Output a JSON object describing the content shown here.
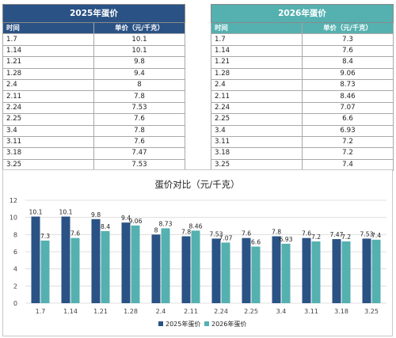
{
  "table_2025": {
    "title": "2025年蛋价",
    "col_time": "时间",
    "col_price": "单价（元/千克）",
    "rows": [
      {
        "date": "1.7",
        "price": "10.1"
      },
      {
        "date": "1.14",
        "price": "10.1"
      },
      {
        "date": "1.21",
        "price": "9.8"
      },
      {
        "date": "1.28",
        "price": "9.4"
      },
      {
        "date": "2.4",
        "price": "8"
      },
      {
        "date": "2.11",
        "price": "7.8"
      },
      {
        "date": "2.24",
        "price": "7.53"
      },
      {
        "date": "2.25",
        "price": "7.6"
      },
      {
        "date": "3.4",
        "price": "7.8"
      },
      {
        "date": "3.11",
        "price": "7.6"
      },
      {
        "date": "3.18",
        "price": "7.47"
      },
      {
        "date": "3.25",
        "price": "7.53"
      }
    ]
  },
  "table_2026": {
    "title": "2026年蛋价",
    "col_time": "时间",
    "col_price": "单价（元/千克）",
    "rows": [
      {
        "date": "1.7",
        "price": "7.3"
      },
      {
        "date": "1.14",
        "price": "7.6"
      },
      {
        "date": "1.21",
        "price": "8.4"
      },
      {
        "date": "1.28",
        "price": "9.06"
      },
      {
        "date": "2.4",
        "price": "8.73"
      },
      {
        "date": "2.11",
        "price": "8.46"
      },
      {
        "date": "2.24",
        "price": "7.07"
      },
      {
        "date": "2.25",
        "price": "6.6"
      },
      {
        "date": "3.4",
        "price": "6.93"
      },
      {
        "date": "3.11",
        "price": "7.2"
      },
      {
        "date": "3.18",
        "price": "7.2"
      },
      {
        "date": "3.25",
        "price": "7.4"
      }
    ]
  },
  "colors": {
    "series_2025": "#2a5285",
    "series_2026": "#55b0b0",
    "grid": "#d9d9d9",
    "axis_text": "#444444"
  },
  "chart_data": {
    "type": "bar",
    "title": "蛋价对比（元/千克）",
    "xlabel": "",
    "ylabel": "",
    "ylim": [
      0,
      12
    ],
    "yticks": [
      0,
      2,
      4,
      6,
      8,
      10,
      12
    ],
    "grid": true,
    "legend_position": "bottom",
    "categories": [
      "1.7",
      "1.14",
      "1.21",
      "1.28",
      "2.4",
      "2.11",
      "2.24",
      "2.25",
      "3.4",
      "3.11",
      "3.18",
      "3.25"
    ],
    "series": [
      {
        "name": "2025年蛋价",
        "values": [
          10.1,
          10.1,
          9.8,
          9.4,
          8,
          7.8,
          7.53,
          7.6,
          7.8,
          7.6,
          7.47,
          7.53
        ]
      },
      {
        "name": "2026年蛋价",
        "values": [
          7.3,
          7.6,
          8.4,
          9.06,
          8.73,
          8.46,
          7.07,
          6.6,
          6.93,
          7.2,
          7.2,
          7.4
        ]
      }
    ]
  }
}
